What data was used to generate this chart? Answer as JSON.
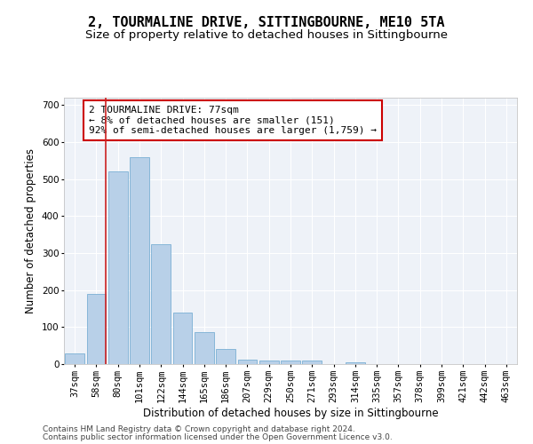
{
  "title": "2, TOURMALINE DRIVE, SITTINGBOURNE, ME10 5TA",
  "subtitle": "Size of property relative to detached houses in Sittingbourne",
  "xlabel": "Distribution of detached houses by size in Sittingbourne",
  "ylabel": "Number of detached properties",
  "categories": [
    "37sqm",
    "58sqm",
    "80sqm",
    "101sqm",
    "122sqm",
    "144sqm",
    "165sqm",
    "186sqm",
    "207sqm",
    "229sqm",
    "250sqm",
    "271sqm",
    "293sqm",
    "314sqm",
    "335sqm",
    "357sqm",
    "378sqm",
    "399sqm",
    "421sqm",
    "442sqm",
    "463sqm"
  ],
  "values": [
    30,
    190,
    520,
    560,
    325,
    140,
    87,
    40,
    12,
    10,
    10,
    10,
    0,
    5,
    0,
    0,
    0,
    0,
    0,
    0,
    0
  ],
  "bar_color": "#b8d0e8",
  "bar_edge_color": "#7aafd4",
  "annotation_text": "2 TOURMALINE DRIVE: 77sqm\n← 8% of detached houses are smaller (151)\n92% of semi-detached houses are larger (1,759) →",
  "annotation_fontsize": 8,
  "annotation_box_color": "white",
  "annotation_edge_color": "#cc0000",
  "vline_x_index": 1,
  "ylim": [
    0,
    720
  ],
  "yticks": [
    0,
    100,
    200,
    300,
    400,
    500,
    600,
    700
  ],
  "footer1": "Contains HM Land Registry data © Crown copyright and database right 2024.",
  "footer2": "Contains public sector information licensed under the Open Government Licence v3.0.",
  "title_fontsize": 11,
  "subtitle_fontsize": 9.5,
  "xlabel_fontsize": 8.5,
  "ylabel_fontsize": 8.5,
  "tick_fontsize": 7.5,
  "footer_fontsize": 6.5,
  "bg_color": "#eef2f8",
  "grid_color": "#ffffff",
  "fig_bg_color": "#ffffff",
  "vline_color": "#cc2222"
}
